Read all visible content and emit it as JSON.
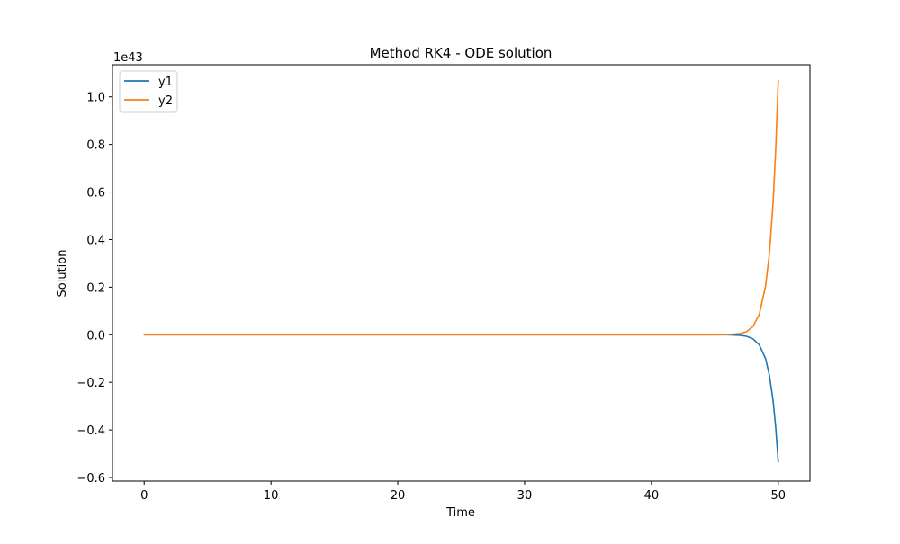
{
  "chart_data": {
    "type": "line",
    "title": "Method RK4 - ODE solution",
    "xlabel": "Time",
    "ylabel": "Solution",
    "y_offset_label": "1e43",
    "y_scale_exponent": 43,
    "xlim": [
      -2.5,
      52.5
    ],
    "ylim": [
      -0.615,
      1.135
    ],
    "x_ticks": [
      0,
      10,
      20,
      30,
      40,
      50
    ],
    "x_tick_labels": [
      "0",
      "10",
      "20",
      "30",
      "40",
      "50"
    ],
    "y_ticks": [
      -0.6,
      -0.4,
      -0.2,
      0.0,
      0.2,
      0.4,
      0.6,
      0.8,
      1.0
    ],
    "y_tick_labels": [
      "−0.6",
      "−0.4",
      "−0.2",
      "0.0",
      "0.2",
      "0.4",
      "0.6",
      "0.8",
      "1.0"
    ],
    "grid": false,
    "legend_position": "upper-left",
    "series": [
      {
        "name": "y1",
        "color": "#1f77b4",
        "x": [
          0,
          10,
          20,
          30,
          40,
          45,
          46,
          47,
          47.5,
          48,
          48.5,
          49,
          49.3,
          49.6,
          49.8,
          50
        ],
        "y": [
          0,
          0,
          0,
          0,
          0,
          0,
          -0.0003,
          -0.0025,
          -0.0065,
          -0.017,
          -0.042,
          -0.1,
          -0.17,
          -0.28,
          -0.39,
          -0.535
        ]
      },
      {
        "name": "y2",
        "color": "#ff7f0e",
        "x": [
          0,
          10,
          20,
          30,
          40,
          45,
          46,
          47,
          47.5,
          48,
          48.5,
          49,
          49.3,
          49.6,
          49.8,
          50
        ],
        "y": [
          0,
          0,
          0,
          0,
          0,
          0,
          0.0006,
          0.005,
          0.013,
          0.034,
          0.085,
          0.205,
          0.34,
          0.56,
          0.78,
          1.07
        ]
      }
    ]
  }
}
